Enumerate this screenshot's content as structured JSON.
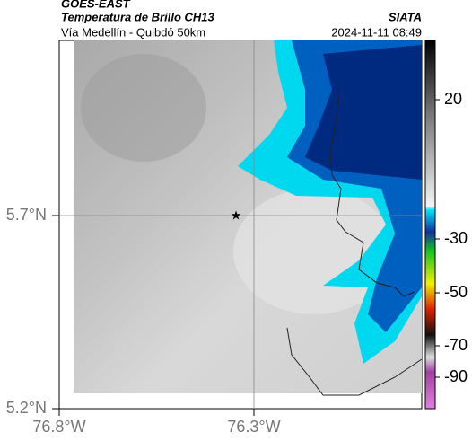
{
  "header": {
    "source": "GOES-EAST",
    "product": "Temperatura de Brillo CH13",
    "route": "Vía Medellín - Quibdó 50km",
    "agency": "SIATA",
    "timestamp": "2024-11-11 08:49"
  },
  "map": {
    "lat_labels": [
      "5.7°N",
      "5.2°N"
    ],
    "lon_labels": [
      "76.8°W",
      "76.3°W"
    ]
  },
  "colorbar": {
    "tick_labels": [
      "20",
      "-30",
      "-50",
      "-70",
      "-90"
    ]
  }
}
